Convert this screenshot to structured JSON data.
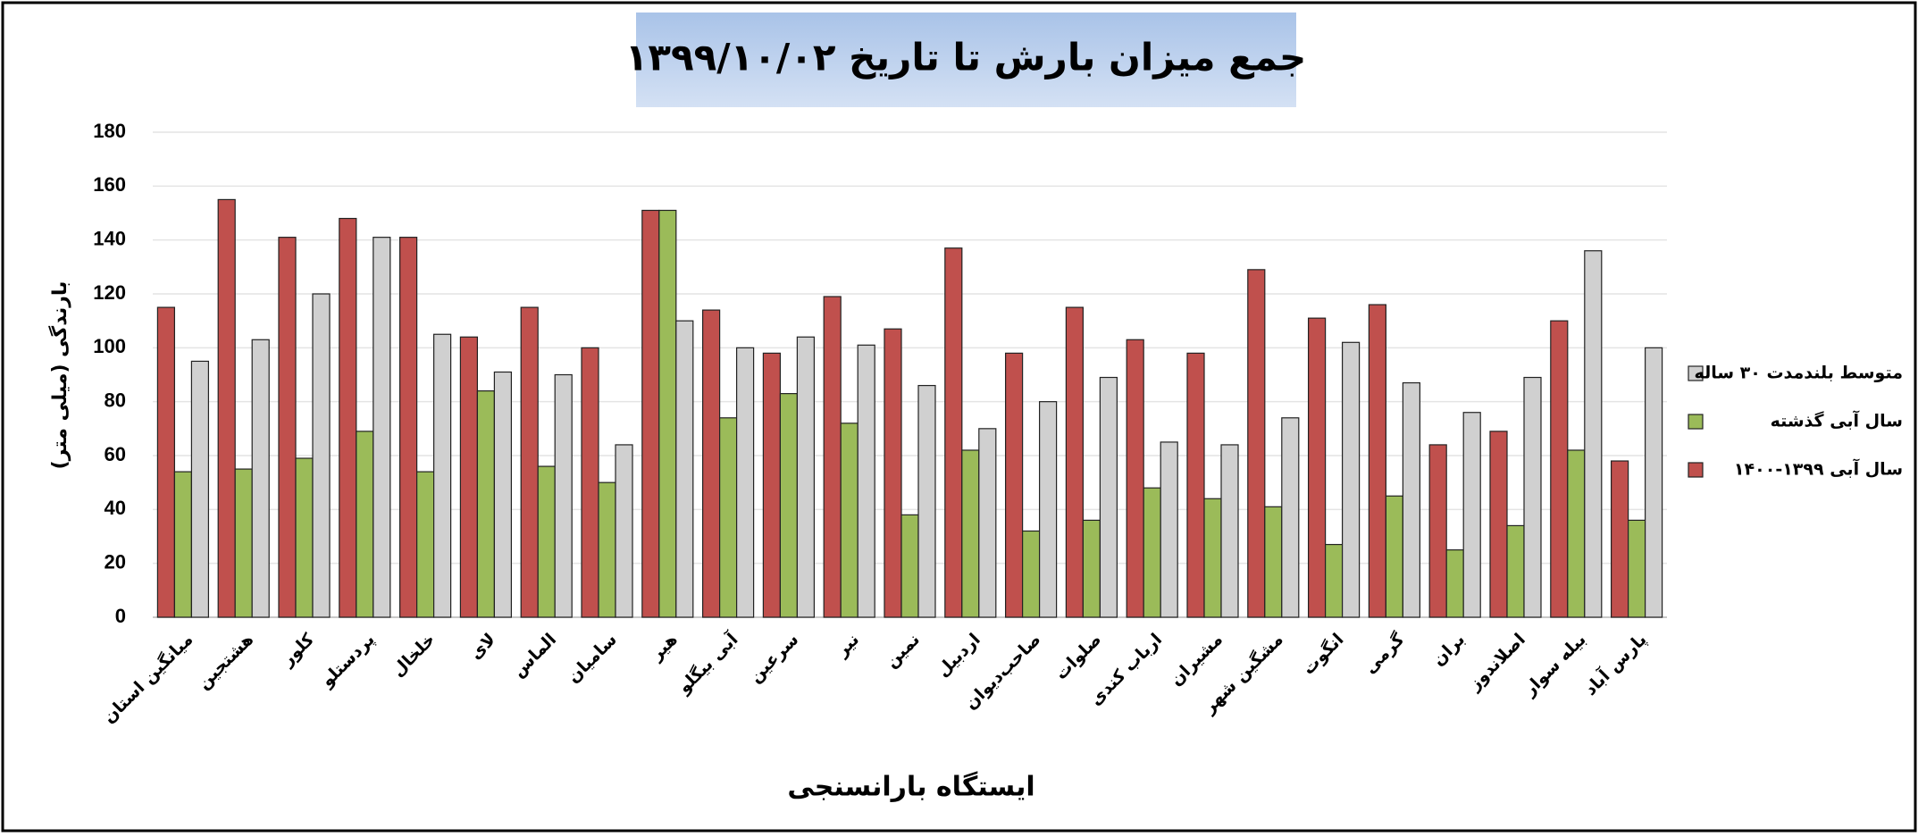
{
  "chart_data": {
    "type": "bar",
    "title": "جمع میزان بارش تا تاریخ  ۱۳۹۹/۱۰/۰۲",
    "y_label": "بارندگی (میلی متر)",
    "x_label": "ایستگاه بارانسنجی",
    "categories": [
      "میانگین استان",
      "هشتجین",
      "کلور",
      "پردستلو",
      "خلخال",
      "لای",
      "الماس",
      "سامیان",
      "هیر",
      "آبی بیگلو",
      "سرعین",
      "نیر",
      "نمین",
      "اردبیل",
      "صاحب‌دیوان",
      "صلوات",
      "ارباب کندی",
      "مشیران",
      "مشگین شهر",
      "انگوت",
      "گرمی",
      "بران",
      "اصلاندوز",
      "بیله سوار",
      "پارس آباد"
    ],
    "series": [
      {
        "name": "سال آبی  ۱۳۹۹-۱۴۰۰",
        "color": "#c0504d",
        "values": [
          115,
          155,
          141,
          148,
          141,
          104,
          115,
          100,
          151,
          114,
          98,
          119,
          107,
          137,
          98,
          115,
          103,
          98,
          129,
          111,
          116,
          64,
          69,
          110,
          58
        ]
      },
      {
        "name": "سال آبی گذشته",
        "color": "#9bbb59",
        "values": [
          54,
          55,
          59,
          69,
          54,
          84,
          56,
          50,
          151,
          74,
          83,
          72,
          38,
          62,
          32,
          36,
          48,
          44,
          41,
          27,
          45,
          25,
          34,
          62,
          36
        ]
      },
      {
        "name": "متوسط بلندمدت ۳۰ ساله",
        "color": "#d0d0d0",
        "values": [
          95,
          103,
          120,
          141,
          105,
          91,
          90,
          64,
          110,
          100,
          104,
          101,
          86,
          70,
          80,
          89,
          65,
          64,
          74,
          102,
          87,
          76,
          89,
          136,
          100
        ]
      }
    ],
    "ylim": [
      0,
      180
    ],
    "yticks": [
      0,
      20,
      40,
      60,
      80,
      100,
      120,
      140,
      160,
      180
    ],
    "grid": true,
    "legend": "right"
  }
}
